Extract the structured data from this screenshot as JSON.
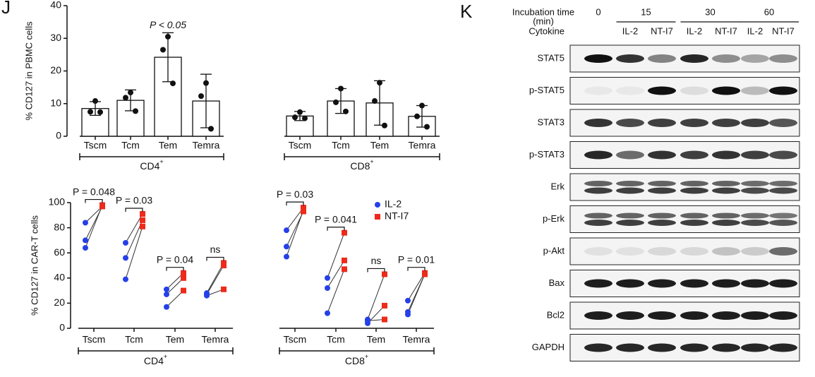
{
  "chart_data": [
    {
      "type": "bar",
      "panel_label": "J",
      "y_label": "% CD127 in PBMC cells",
      "categories": [
        "Tscm",
        "Tcm",
        "Tem",
        "Temra",
        "Tscm",
        "Tcm",
        "Tem",
        "Temra"
      ],
      "values": [
        8.5,
        11,
        24.2,
        10.8,
        6.2,
        10.8,
        10.2,
        6.1
      ],
      "errors": [
        2.1,
        3.2,
        7.5,
        8.2,
        1.4,
        3.8,
        6.8,
        3.3
      ],
      "points": [
        [
          10.8,
          7.5,
          7.4
        ],
        [
          13.4,
          11.8,
          7.7
        ],
        [
          30.5,
          26.5,
          16.2
        ],
        [
          16.3,
          12.3,
          2.3
        ],
        [
          7.4,
          5.8,
          5.5
        ],
        [
          14.6,
          10.4,
          7.6
        ],
        [
          16.4,
          10.8,
          3.3
        ],
        [
          9.4,
          6.1,
          2.9
        ]
      ],
      "annotations": [
        null,
        null,
        "P < 0.05",
        null,
        null,
        null,
        null,
        null
      ],
      "groups": [
        {
          "label": "CD4",
          "superscript": "+",
          "color": "#ee2a1b"
        },
        {
          "label": "CD8",
          "superscript": "+",
          "color": "#2540e8"
        }
      ],
      "ylim": [
        0,
        40
      ],
      "yticks": [
        0,
        10,
        20,
        30,
        40
      ]
    },
    {
      "type": "paired",
      "y_label": "% CD127 in CAR-T cells",
      "categories": [
        "Tscm",
        "Tcm",
        "Tem",
        "Temra",
        "Tscm",
        "Tcm",
        "Tem",
        "Temra"
      ],
      "series": [
        {
          "name": "IL-2",
          "color": "#2540e8",
          "marker": "circle",
          "values": [
            [
              84,
              70,
              64
            ],
            [
              68,
              56,
              39
            ],
            [
              31,
              27,
              17
            ],
            [
              28,
              27,
              26
            ],
            [
              78,
              65,
              57
            ],
            [
              40,
              32,
              12
            ],
            [
              7,
              4,
              6
            ],
            [
              22,
              13,
              11
            ]
          ]
        },
        {
          "name": "NT-I7",
          "color": "#ee2a1b",
          "marker": "square",
          "values": [
            [
              97,
              97,
              98
            ],
            [
              91,
              86,
              81
            ],
            [
              44,
              40,
              30
            ],
            [
              52,
              50,
              31
            ],
            [
              96,
              93,
              94
            ],
            [
              76,
              54,
              47
            ],
            [
              43,
              18,
              7
            ],
            [
              44,
              43,
              43
            ]
          ]
        }
      ],
      "annotations": [
        "P = 0.048",
        "P = 0.03",
        "P = 0.04",
        "ns",
        "P = 0.03",
        "P = 0.041",
        "ns",
        "P = 0.01"
      ],
      "groups": [
        {
          "label": "CD4",
          "superscript": "+",
          "color": "#ee2a1b"
        },
        {
          "label": "CD8",
          "superscript": "+",
          "color": "#2540e8"
        }
      ],
      "ylim": [
        0,
        100
      ],
      "yticks": [
        0,
        20,
        40,
        60,
        80,
        100
      ]
    }
  ],
  "blot": {
    "panel_label": "K",
    "time_label": [
      "Incubation time",
      "(min)"
    ],
    "cytokine_label": "Cytokine",
    "times": [
      "0",
      "15",
      "30",
      "60"
    ],
    "cytokines": [
      "IL-2",
      "NT-I7",
      "IL-2",
      "NT-I7",
      "IL-2",
      "NT-I7"
    ],
    "rows": [
      "STAT5",
      "p-STAT5",
      "STAT3",
      "p-STAT3",
      "Erk",
      "p-Erk",
      "p-Akt",
      "Bax",
      "Bcl2",
      "GAPDH"
    ]
  }
}
